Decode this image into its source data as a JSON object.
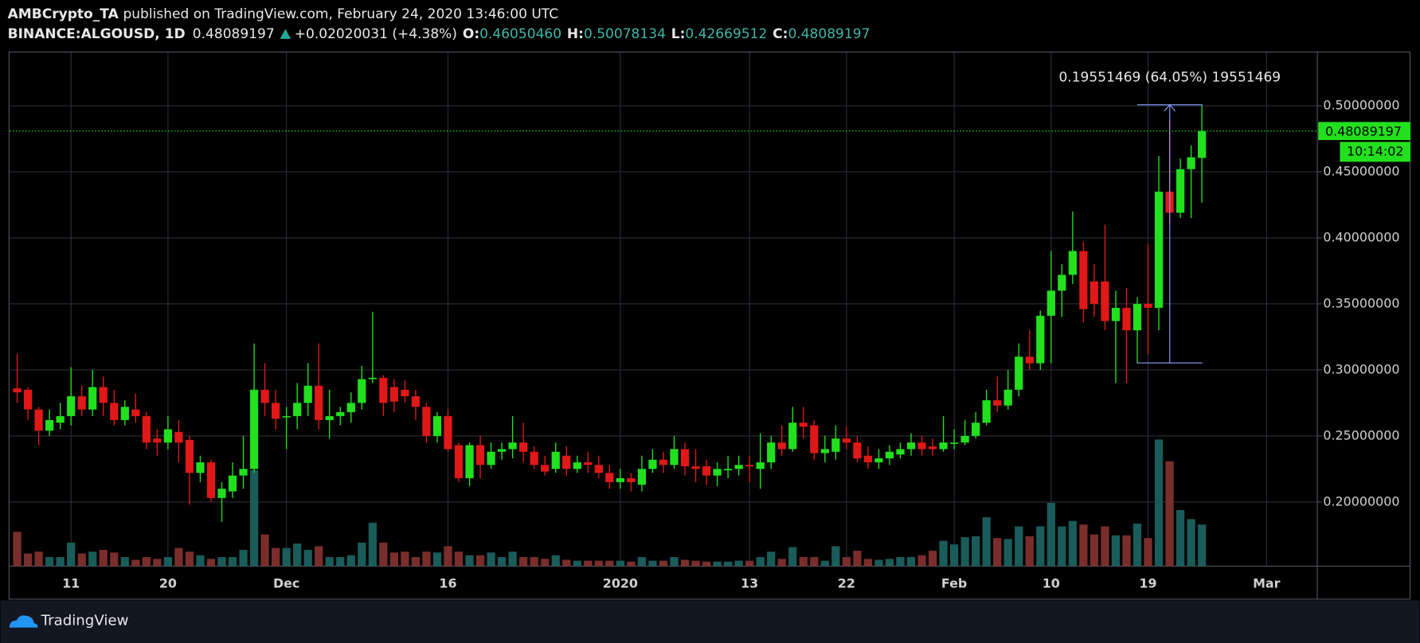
{
  "chart_data": {
    "type": "candlestick",
    "author": "AMBCrypto_TA",
    "title": "published on TradingView.com, February 24, 2020 13:46:00 UTC",
    "symbol": "BINANCE:ALGOUSD, 1D",
    "last": "0.48089197",
    "change": "+0.02020031 (+4.38%)",
    "ohlc_header": [
      {
        "label": "O:",
        "value": "0.46050460"
      },
      {
        "label": "H:",
        "value": "0.50078134"
      },
      {
        "label": "L:",
        "value": "0.42669512"
      },
      {
        "label": "C:",
        "value": "0.48089197"
      }
    ],
    "categories": [
      null,
      null,
      null,
      null,
      null,
      "11",
      null,
      null,
      null,
      null,
      null,
      null,
      null,
      null,
      "20",
      null,
      null,
      null,
      null,
      null,
      null,
      null,
      null,
      null,
      null,
      "Dec",
      null,
      null,
      null,
      null,
      null,
      null,
      null,
      null,
      null,
      null,
      null,
      null,
      null,
      null,
      "16",
      null,
      null,
      null,
      null,
      null,
      null,
      null,
      null,
      null,
      null,
      null,
      null,
      null,
      null,
      null,
      "2020",
      null,
      null,
      null,
      null,
      null,
      null,
      null,
      null,
      null,
      null,
      null,
      "13",
      null,
      null,
      null,
      null,
      null,
      null,
      null,
      null,
      "22",
      null,
      null,
      null,
      null,
      null,
      null,
      null,
      null,
      null,
      "Feb",
      null,
      null,
      null,
      null,
      null,
      null,
      null,
      null,
      "10",
      null,
      null,
      null,
      null,
      null,
      null,
      null,
      null,
      "19",
      null,
      null,
      null,
      null,
      null,
      null,
      null,
      null,
      null,
      null,
      "Mar"
    ],
    "open": [
      0.286,
      0.285,
      0.27,
      0.254,
      0.26,
      0.265,
      0.28,
      0.27,
      0.287,
      0.275,
      0.262,
      0.27,
      0.265,
      0.248,
      0.245,
      0.253,
      0.247,
      0.222,
      0.23,
      0.203,
      0.208,
      0.22,
      0.225,
      0.285,
      0.275,
      0.264,
      0.265,
      0.275,
      0.288,
      0.262,
      0.265,
      0.268,
      0.275,
      0.293,
      0.294,
      0.287,
      0.285,
      0.28,
      0.272,
      0.25,
      0.265,
      0.243,
      0.218,
      0.243,
      0.228,
      0.238,
      0.24,
      0.245,
      0.238,
      0.228,
      0.225,
      0.235,
      0.225,
      0.23,
      0.228,
      0.222,
      0.215,
      0.218,
      0.213,
      0.225,
      0.232,
      0.228,
      0.24,
      0.227,
      0.227,
      0.22,
      0.225,
      0.225,
      0.228,
      0.225,
      0.23,
      0.245,
      0.24,
      0.26,
      0.258,
      0.237,
      0.238,
      0.248,
      0.245,
      0.235,
      0.23,
      0.233,
      0.236,
      0.24,
      0.245,
      0.242,
      0.24,
      0.245,
      0.245,
      0.25,
      0.26,
      0.277,
      0.273,
      0.285,
      0.31,
      0.305,
      0.341,
      0.36,
      0.372,
      0.39,
      0.367,
      0.367,
      0.337,
      0.347,
      0.33,
      0.35,
      0.347,
      0.435,
      0.419,
      0.452,
      0.4605046,
      null,
      null,
      null,
      null,
      null,
      null
    ],
    "high": [
      0.312,
      0.287,
      0.272,
      0.27,
      0.275,
      0.302,
      0.288,
      0.3,
      0.295,
      0.285,
      0.277,
      0.282,
      0.268,
      0.255,
      0.265,
      0.262,
      0.25,
      0.235,
      0.232,
      0.215,
      0.23,
      0.25,
      0.32,
      0.305,
      0.285,
      0.272,
      0.29,
      0.305,
      0.32,
      0.285,
      0.272,
      0.283,
      0.303,
      0.344,
      0.296,
      0.293,
      0.292,
      0.285,
      0.275,
      0.268,
      0.27,
      0.245,
      0.245,
      0.25,
      0.245,
      0.245,
      0.265,
      0.26,
      0.242,
      0.235,
      0.245,
      0.242,
      0.235,
      0.238,
      0.235,
      0.228,
      0.225,
      0.222,
      0.235,
      0.24,
      0.238,
      0.25,
      0.245,
      0.24,
      0.232,
      0.23,
      0.235,
      0.235,
      0.235,
      0.252,
      0.25,
      0.258,
      0.272,
      0.272,
      0.262,
      0.25,
      0.258,
      0.257,
      0.25,
      0.242,
      0.24,
      0.243,
      0.245,
      0.252,
      0.25,
      0.248,
      0.265,
      0.255,
      0.262,
      0.268,
      0.285,
      0.295,
      0.3,
      0.32,
      0.33,
      0.345,
      0.39,
      0.38,
      0.42,
      0.397,
      0.38,
      0.41,
      0.36,
      0.362,
      0.355,
      0.395,
      0.462,
      0.49,
      0.46,
      0.47,
      0.50078134,
      null,
      null,
      null,
      null,
      null,
      null
    ],
    "low": [
      0.275,
      0.262,
      0.243,
      0.25,
      0.255,
      0.258,
      0.265,
      0.265,
      0.265,
      0.258,
      0.258,
      0.26,
      0.24,
      0.235,
      0.24,
      0.23,
      0.198,
      0.215,
      0.2,
      0.185,
      0.203,
      0.21,
      0.222,
      0.265,
      0.255,
      0.24,
      0.255,
      0.265,
      0.255,
      0.248,
      0.258,
      0.26,
      0.27,
      0.29,
      0.265,
      0.268,
      0.275,
      0.262,
      0.245,
      0.245,
      0.238,
      0.215,
      0.212,
      0.218,
      0.225,
      0.232,
      0.233,
      0.23,
      0.225,
      0.22,
      0.222,
      0.22,
      0.222,
      0.222,
      0.218,
      0.21,
      0.21,
      0.208,
      0.208,
      0.222,
      0.222,
      0.225,
      0.22,
      0.215,
      0.213,
      0.212,
      0.218,
      0.22,
      0.215,
      0.21,
      0.225,
      0.235,
      0.238,
      0.248,
      0.232,
      0.23,
      0.232,
      0.24,
      0.23,
      0.225,
      0.225,
      0.228,
      0.233,
      0.235,
      0.235,
      0.235,
      0.238,
      0.24,
      0.243,
      0.248,
      0.258,
      0.268,
      0.27,
      0.28,
      0.3,
      0.3,
      0.305,
      0.34,
      0.365,
      0.336,
      0.34,
      0.33,
      0.29,
      0.29,
      0.305,
      0.312,
      0.33,
      0.41,
      0.415,
      0.415,
      0.42669512,
      null,
      null,
      null,
      null,
      null,
      null
    ],
    "close": [
      0.283,
      0.27,
      0.254,
      0.262,
      0.265,
      0.28,
      0.27,
      0.287,
      0.275,
      0.262,
      0.272,
      0.265,
      0.245,
      0.245,
      0.255,
      0.245,
      0.222,
      0.23,
      0.203,
      0.21,
      0.22,
      0.225,
      0.285,
      0.275,
      0.263,
      0.265,
      0.275,
      0.288,
      0.262,
      0.265,
      0.268,
      0.275,
      0.293,
      0.294,
      0.275,
      0.276,
      0.28,
      0.272,
      0.25,
      0.265,
      0.24,
      0.218,
      0.243,
      0.228,
      0.238,
      0.24,
      0.245,
      0.238,
      0.228,
      0.223,
      0.238,
      0.225,
      0.23,
      0.228,
      0.222,
      0.215,
      0.218,
      0.215,
      0.225,
      0.232,
      0.228,
      0.24,
      0.227,
      0.225,
      0.22,
      0.225,
      0.225,
      0.228,
      0.227,
      0.23,
      0.245,
      0.24,
      0.26,
      0.257,
      0.237,
      0.24,
      0.248,
      0.245,
      0.233,
      0.23,
      0.233,
      0.238,
      0.24,
      0.245,
      0.24,
      0.24,
      0.245,
      0.245,
      0.25,
      0.26,
      0.277,
      0.273,
      0.285,
      0.31,
      0.305,
      0.341,
      0.36,
      0.372,
      0.39,
      0.346,
      0.35,
      0.337,
      0.347,
      0.33,
      0.35,
      0.347,
      0.435,
      0.419,
      0.452,
      0.461,
      0.48089197,
      null,
      null,
      null,
      null,
      null,
      null
    ],
    "volume": [
      38,
      14,
      16,
      10,
      10,
      26,
      14,
      16,
      18,
      15,
      10,
      7,
      10,
      8,
      10,
      20,
      16,
      12,
      8,
      10,
      10,
      18,
      106,
      35,
      20,
      20,
      25,
      18,
      22,
      10,
      10,
      12,
      26,
      48,
      26,
      15,
      16,
      10,
      16,
      15,
      22,
      16,
      12,
      12,
      15,
      10,
      16,
      10,
      10,
      8,
      12,
      7,
      6,
      6,
      6,
      6,
      6,
      5,
      10,
      6,
      6,
      10,
      7,
      6,
      5,
      5,
      5,
      6,
      6,
      10,
      16,
      8,
      21,
      10,
      10,
      6,
      22,
      10,
      17,
      8,
      7,
      8,
      10,
      10,
      12,
      17,
      28,
      24,
      32,
      33,
      54,
      31,
      30,
      44,
      33,
      44,
      70,
      44,
      50,
      46,
      35,
      44,
      34,
      34,
      47,
      31,
      140,
      116,
      62,
      52,
      46,
      null,
      null,
      null,
      null,
      null,
      null
    ],
    "volume_lim": [
      0,
      568
    ],
    "ylim": [
      0.1514,
      0.5404
    ],
    "yticks": [
      {
        "value": 0.2,
        "label": "0.20000000"
      },
      {
        "value": 0.25,
        "label": "0.25000000"
      },
      {
        "value": 0.3,
        "label": "0.30000000"
      },
      {
        "value": 0.35,
        "label": "0.35000000"
      },
      {
        "value": 0.4,
        "label": "0.40000000"
      },
      {
        "value": 0.45,
        "label": "0.45000000"
      },
      {
        "value": 0.5,
        "label": "0.50000000"
      }
    ],
    "grid": true,
    "up_color": "#22e01e",
    "down_color": "#e01818",
    "volume_up_color": "#1a5c5a",
    "volume_down_color": "#7a2e2b",
    "last_price_label": "0.48089197",
    "countdown": "10:14:02",
    "measure": {
      "text": "0.19551469 (64.05%) 19551469",
      "range": [
        0.30527,
        0.50078
      ]
    },
    "footer": "TradingView"
  }
}
